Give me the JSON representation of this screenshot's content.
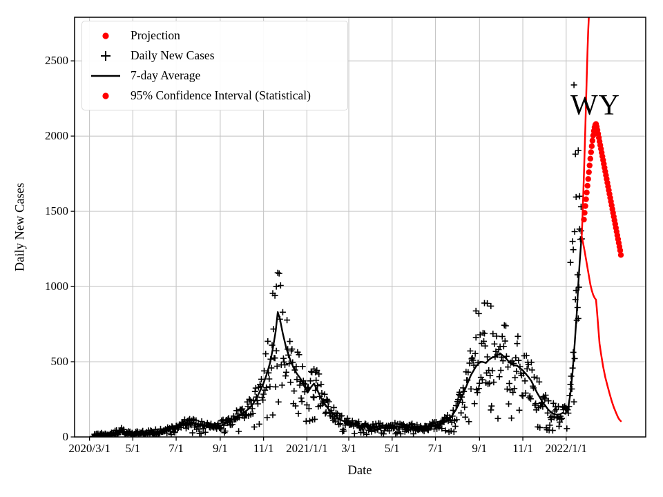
{
  "colors": {
    "red": "#ff0000",
    "black": "#000000",
    "grid": "#c6c6c6",
    "legend_border": "#d9d9d9"
  },
  "legend": {
    "position": "upper left",
    "items": [
      {
        "label": "Projection",
        "marker": "dot-red"
      },
      {
        "label": "Daily New Cases",
        "marker": "plus-black"
      },
      {
        "label": "7-day Average",
        "marker": "line-black"
      },
      {
        "label": "95% Confidence Interval (Statistical)",
        "marker": "dot-red"
      }
    ]
  },
  "chart_data": {
    "type": "scatter",
    "annotation": "WY",
    "xlabel": "Date",
    "ylabel": "Daily New Cases",
    "grid": true,
    "x_epoch": "2020/3/1",
    "x_ticks": [
      {
        "label": "2020/3/1",
        "day": 0
      },
      {
        "label": "5/1",
        "day": 61
      },
      {
        "label": "7/1",
        "day": 122
      },
      {
        "label": "9/1",
        "day": 184
      },
      {
        "label": "11/1",
        "day": 245
      },
      {
        "label": "2021/1/1",
        "day": 306
      },
      {
        "label": "3/1",
        "day": 365
      },
      {
        "label": "5/1",
        "day": 426
      },
      {
        "label": "7/1",
        "day": 487
      },
      {
        "label": "9/1",
        "day": 549
      },
      {
        "label": "11/1",
        "day": 610
      },
      {
        "label": "2022/1/1",
        "day": 671
      }
    ],
    "y_ticks": [
      0,
      500,
      1000,
      1500,
      2000,
      2500
    ],
    "xlim_days": [
      -21,
      783
    ],
    "ylim": [
      0,
      2790
    ],
    "series": {
      "avg_7day_anchors": [
        [
          0,
          0
        ],
        [
          4,
          4
        ],
        [
          8,
          8
        ],
        [
          14,
          12
        ],
        [
          22,
          14
        ],
        [
          30,
          18
        ],
        [
          38,
          28
        ],
        [
          45,
          38
        ],
        [
          52,
          28
        ],
        [
          60,
          22
        ],
        [
          70,
          22
        ],
        [
          80,
          26
        ],
        [
          90,
          30
        ],
        [
          100,
          36
        ],
        [
          110,
          46
        ],
        [
          122,
          62
        ],
        [
          130,
          78
        ],
        [
          138,
          92
        ],
        [
          145,
          96
        ],
        [
          152,
          82
        ],
        [
          160,
          72
        ],
        [
          168,
          72
        ],
        [
          176,
          76
        ],
        [
          184,
          72
        ],
        [
          192,
          92
        ],
        [
          200,
          112
        ],
        [
          208,
          134
        ],
        [
          216,
          158
        ],
        [
          224,
          186
        ],
        [
          231,
          225
        ],
        [
          238,
          285
        ],
        [
          244,
          345
        ],
        [
          249,
          410
        ],
        [
          254,
          490
        ],
        [
          258,
          585
        ],
        [
          262,
          700
        ],
        [
          265,
          830
        ],
        [
          268,
          785
        ],
        [
          272,
          690
        ],
        [
          277,
          590
        ],
        [
          282,
          520
        ],
        [
          287,
          462
        ],
        [
          292,
          420
        ],
        [
          297,
          388
        ],
        [
          302,
          340
        ],
        [
          307,
          295
        ],
        [
          312,
          332
        ],
        [
          316,
          355
        ],
        [
          320,
          318
        ],
        [
          325,
          268
        ],
        [
          330,
          228
        ],
        [
          336,
          188
        ],
        [
          342,
          158
        ],
        [
          350,
          124
        ],
        [
          358,
          104
        ],
        [
          365,
          94
        ],
        [
          375,
          80
        ],
        [
          385,
          70
        ],
        [
          395,
          64
        ],
        [
          405,
          70
        ],
        [
          415,
          62
        ],
        [
          425,
          66
        ],
        [
          435,
          68
        ],
        [
          445,
          62
        ],
        [
          455,
          68
        ],
        [
          465,
          60
        ],
        [
          475,
          66
        ],
        [
          487,
          76
        ],
        [
          495,
          88
        ],
        [
          502,
          102
        ],
        [
          509,
          132
        ],
        [
          516,
          182
        ],
        [
          523,
          252
        ],
        [
          530,
          332
        ],
        [
          537,
          412
        ],
        [
          544,
          468
        ],
        [
          550,
          500
        ],
        [
          554,
          498
        ],
        [
          558,
          492
        ],
        [
          562,
          512
        ],
        [
          566,
          526
        ],
        [
          570,
          532
        ],
        [
          574,
          544
        ],
        [
          578,
          556
        ],
        [
          582,
          540
        ],
        [
          586,
          524
        ],
        [
          590,
          502
        ],
        [
          594,
          484
        ],
        [
          598,
          476
        ],
        [
          602,
          474
        ],
        [
          606,
          458
        ],
        [
          610,
          442
        ],
        [
          614,
          420
        ],
        [
          618,
          398
        ],
        [
          622,
          372
        ],
        [
          626,
          332
        ],
        [
          630,
          294
        ],
        [
          634,
          262
        ],
        [
          638,
          230
        ],
        [
          642,
          206
        ],
        [
          646,
          180
        ],
        [
          650,
          164
        ],
        [
          654,
          152
        ],
        [
          658,
          148
        ],
        [
          662,
          150
        ],
        [
          666,
          160
        ],
        [
          670,
          154
        ],
        [
          674,
          200
        ],
        [
          677,
          290
        ],
        [
          680,
          430
        ],
        [
          683,
          620
        ],
        [
          686,
          830
        ],
        [
          688,
          1010
        ],
        [
          690,
          1160
        ],
        [
          692,
          1290
        ],
        [
          693,
          1335
        ]
      ],
      "projection": [
        [
          696,
          1445
        ],
        [
          697,
          1490
        ],
        [
          698,
          1535
        ],
        [
          699,
          1580
        ],
        [
          700,
          1625
        ],
        [
          701,
          1670
        ],
        [
          702,
          1715
        ],
        [
          703,
          1760
        ],
        [
          704,
          1805
        ],
        [
          705,
          1850
        ],
        [
          706,
          1893
        ],
        [
          707,
          1933
        ],
        [
          708,
          1970
        ],
        [
          709,
          2004
        ],
        [
          710,
          2034
        ],
        [
          711,
          2058
        ],
        [
          712,
          2075
        ],
        [
          713,
          2080
        ],
        [
          714,
          2062
        ],
        [
          715,
          2040
        ],
        [
          716,
          2015
        ],
        [
          717,
          1990
        ],
        [
          718,
          1965
        ],
        [
          719,
          1940
        ],
        [
          720,
          1915
        ],
        [
          721,
          1890
        ],
        [
          722,
          1865
        ],
        [
          723,
          1840
        ],
        [
          724,
          1815
        ],
        [
          725,
          1790
        ],
        [
          726,
          1765
        ],
        [
          727,
          1740
        ],
        [
          728,
          1715
        ],
        [
          729,
          1690
        ],
        [
          730,
          1665
        ],
        [
          731,
          1640
        ],
        [
          732,
          1615
        ],
        [
          733,
          1590
        ],
        [
          734,
          1565
        ],
        [
          735,
          1540
        ],
        [
          736,
          1515
        ],
        [
          737,
          1490
        ],
        [
          738,
          1465
        ],
        [
          739,
          1440
        ],
        [
          740,
          1415
        ],
        [
          741,
          1390
        ],
        [
          742,
          1365
        ],
        [
          743,
          1340
        ],
        [
          744,
          1315
        ],
        [
          745,
          1290
        ],
        [
          746,
          1265
        ],
        [
          747,
          1240
        ],
        [
          748,
          1210
        ]
      ],
      "ci_upper": [
        [
          693,
          1340
        ],
        [
          694,
          1465
        ],
        [
          695,
          1600
        ],
        [
          696,
          1745
        ],
        [
          697,
          1900
        ],
        [
          698,
          2060
        ],
        [
          699,
          2230
        ],
        [
          700,
          2400
        ],
        [
          701,
          2560
        ],
        [
          702,
          2700
        ],
        [
          703,
          2800
        ],
        [
          704,
          2950
        ]
      ],
      "ci_lower": [
        [
          693,
          1330
        ],
        [
          695,
          1285
        ],
        [
          697,
          1235
        ],
        [
          699,
          1180
        ],
        [
          701,
          1125
        ],
        [
          703,
          1070
        ],
        [
          705,
          1015
        ],
        [
          707,
          975
        ],
        [
          709,
          945
        ],
        [
          711,
          925
        ],
        [
          713,
          912
        ],
        [
          714,
          860
        ],
        [
          716,
          740
        ],
        [
          718,
          620
        ],
        [
          720,
          555
        ],
        [
          723,
          468
        ],
        [
          726,
          398
        ],
        [
          729,
          343
        ],
        [
          732,
          290
        ],
        [
          735,
          240
        ],
        [
          738,
          198
        ],
        [
          741,
          163
        ],
        [
          744,
          130
        ],
        [
          746,
          115
        ],
        [
          748,
          105
        ]
      ],
      "daily_outliers": [
        [
          682,
          2340
        ],
        [
          688,
          1905
        ],
        [
          684,
          1880
        ],
        [
          690,
          1600
        ],
        [
          685,
          1595
        ],
        [
          692,
          1370
        ],
        [
          683,
          1365
        ],
        [
          680,
          1300
        ],
        [
          681,
          1245
        ],
        [
          677,
          1160
        ],
        [
          687,
          1078
        ],
        [
          263,
          1000
        ],
        [
          258,
          955
        ],
        [
          261,
          940
        ],
        [
          556,
          890
        ],
        [
          560,
          888
        ],
        [
          565,
          870
        ],
        [
          544,
          838
        ],
        [
          548,
          820
        ],
        [
          316,
          452
        ],
        [
          318,
          430
        ]
      ],
      "daily_noise": {
        "seed": 42,
        "base_amp": 0.33,
        "wave_amp": 0.42,
        "wave_ranges": [
          [
            235,
            330
          ],
          [
            510,
            665
          ]
        ],
        "add_amp": 12,
        "dropout_p": 0.1,
        "dropout_factor": 0.35,
        "day_range": [
          4,
          693
        ]
      }
    }
  }
}
